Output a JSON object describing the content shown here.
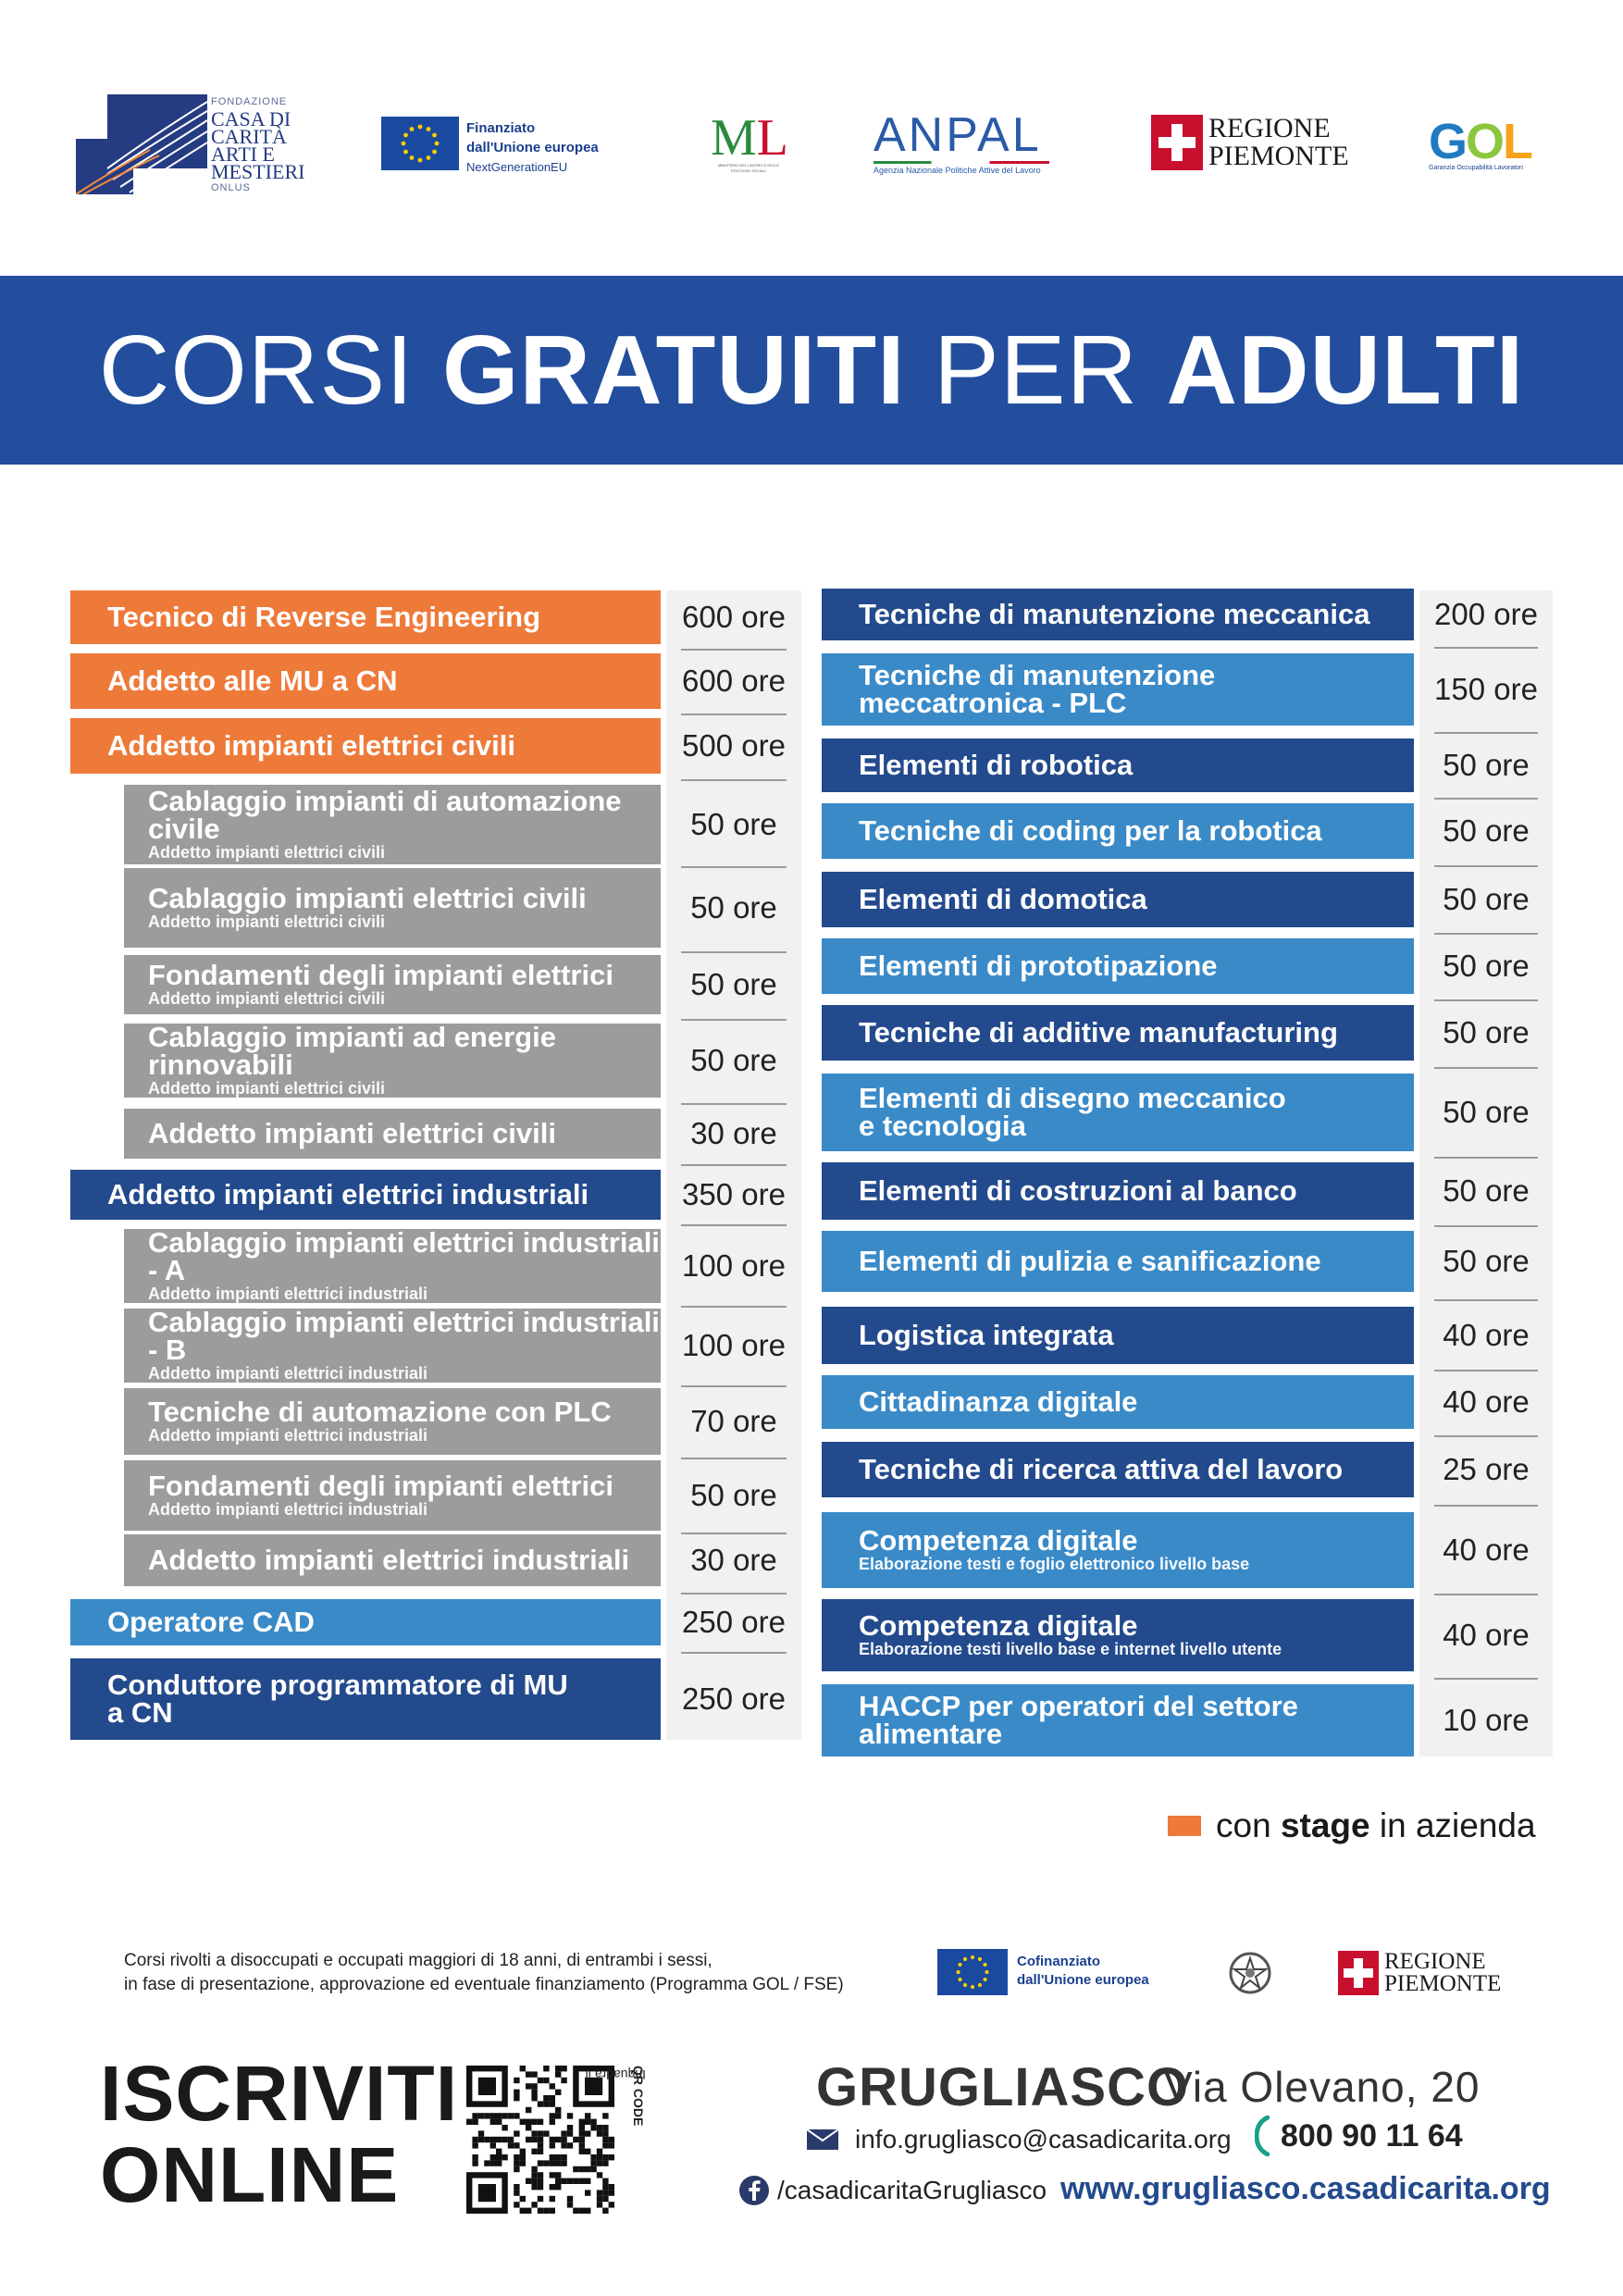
{
  "logos": {
    "cdc": {
      "line1": "FONDAZIONE",
      "line2": "CASA DI",
      "line3": "CARITÀ",
      "line4": "ARTI E",
      "line5": "MESTIERI",
      "line6": "ONLUS"
    },
    "eu": {
      "line1": "Finanziato",
      "line2": "dall'Unione europea",
      "line3": "NextGenerationEU"
    },
    "ml": {
      "letters_m": "M",
      "letters_l": "L",
      "sub": "MINISTERO DEL LAVORO E DELLE POLITICHE SOCIALI"
    },
    "anpal": {
      "word": "ANPAL",
      "sub": "Agenzia Nazionale Politiche Attive del Lavoro"
    },
    "regione": {
      "line1": "REGIONE",
      "line2": "PIEMONTE"
    },
    "gol": {
      "g": "G",
      "o": "O",
      "l": "L",
      "sub": "Garanzia Occupabilità Lavoratori"
    }
  },
  "banner": {
    "part1": "CORSI ",
    "part2": "GRATUITI",
    "part3": " PER ",
    "part4": "ADULTI"
  },
  "colors": {
    "orange": "#ee7a3a",
    "grey": "#9c9c9c",
    "navy": "#234a8c",
    "blue": "#3a8ac8",
    "banner": "#234e9e"
  },
  "left_courses": [
    {
      "title": "Tecnico di Reverse Engineering",
      "sub": "",
      "hours": "600 ore",
      "color": "orange",
      "indent": false
    },
    {
      "title": "Addetto alle MU a CN",
      "sub": "",
      "hours": "600 ore",
      "color": "orange",
      "indent": false
    },
    {
      "title": "Addetto impianti elettrici civili",
      "sub": "",
      "hours": "500 ore",
      "color": "orange",
      "indent": false
    },
    {
      "title": "Cablaggio impianti di automazione civile",
      "sub": "Addetto impianti elettrici civili",
      "hours": "50 ore",
      "color": "grey",
      "indent": true
    },
    {
      "title": "Cablaggio impianti elettrici civili",
      "sub": "Addetto impianti elettrici civili",
      "hours": "50 ore",
      "color": "grey",
      "indent": true
    },
    {
      "title": "Fondamenti degli impianti elettrici",
      "sub": "Addetto impianti elettrici civili",
      "hours": "50 ore",
      "color": "grey",
      "indent": true
    },
    {
      "title": "Cablaggio impianti ad energie rinnovabili",
      "sub": "Addetto impianti elettrici civili",
      "hours": "50 ore",
      "color": "grey",
      "indent": true
    },
    {
      "title": "Addetto impianti elettrici civili",
      "sub": "",
      "hours": "30 ore",
      "color": "grey",
      "indent": true
    },
    {
      "title": "Addetto impianti elettrici industriali",
      "sub": "",
      "hours": "350 ore",
      "color": "navy",
      "indent": false
    },
    {
      "title": "Cablaggio impianti elettrici industriali - A",
      "sub": "Addetto impianti elettrici industriali",
      "hours": "100 ore",
      "color": "grey",
      "indent": true
    },
    {
      "title": "Cablaggio impianti elettrici industriali - B",
      "sub": "Addetto impianti elettrici industriali",
      "hours": "100 ore",
      "color": "grey",
      "indent": true
    },
    {
      "title": "Tecniche di automazione con PLC",
      "sub": "Addetto impianti elettrici industriali",
      "hours": "70 ore",
      "color": "grey",
      "indent": true
    },
    {
      "title": "Fondamenti degli impianti elettrici",
      "sub": "Addetto impianti elettrici industriali",
      "hours": "50 ore",
      "color": "grey",
      "indent": true
    },
    {
      "title": "Addetto impianti elettrici industriali",
      "sub": "",
      "hours": "30 ore",
      "color": "grey",
      "indent": true
    },
    {
      "title": "Operatore CAD",
      "sub": "",
      "hours": "250 ore",
      "color": "blue",
      "indent": false
    },
    {
      "title": "Conduttore programmatore di MU\na CN",
      "sub": "",
      "hours": "250 ore",
      "color": "navy",
      "indent": false
    }
  ],
  "right_courses": [
    {
      "title": "Tecniche di manutenzione meccanica",
      "sub": "",
      "hours": "200 ore",
      "color": "navy"
    },
    {
      "title": "Tecniche di manutenzione\nmeccatronica - PLC",
      "sub": "",
      "hours": "150 ore",
      "color": "blue"
    },
    {
      "title": "Elementi di robotica",
      "sub": "",
      "hours": "50 ore",
      "color": "navy"
    },
    {
      "title": "Tecniche di coding per la robotica",
      "sub": "",
      "hours": "50 ore",
      "color": "blue"
    },
    {
      "title": "Elementi di domotica",
      "sub": "",
      "hours": "50 ore",
      "color": "navy"
    },
    {
      "title": "Elementi di prototipazione",
      "sub": "",
      "hours": "50 ore",
      "color": "blue"
    },
    {
      "title": "Tecniche di additive manufacturing",
      "sub": "",
      "hours": "50 ore",
      "color": "navy"
    },
    {
      "title": "Elementi di disegno meccanico\ne tecnologia",
      "sub": "",
      "hours": "50 ore",
      "color": "blue"
    },
    {
      "title": "Elementi di costruzioni al banco",
      "sub": "",
      "hours": "50 ore",
      "color": "navy"
    },
    {
      "title": "Elementi di pulizia e sanificazione",
      "sub": "",
      "hours": "50 ore",
      "color": "blue"
    },
    {
      "title": "Logistica integrata",
      "sub": "",
      "hours": "40 ore",
      "color": "navy"
    },
    {
      "title": "Cittadinanza digitale",
      "sub": "",
      "hours": "40 ore",
      "color": "blue"
    },
    {
      "title": "Tecniche di ricerca attiva del lavoro",
      "sub": "",
      "hours": "25 ore",
      "color": "navy"
    },
    {
      "title": "Competenza digitale",
      "sub": "Elaborazione testi e foglio elettronico livello base",
      "hours": "40 ore",
      "color": "blue"
    },
    {
      "title": "Competenza digitale",
      "sub": "Elaborazione testi livello base e internet livello utente",
      "hours": "40 ore",
      "color": "navy"
    },
    {
      "title": "HACCP per operatori del settore\nalimentare",
      "sub": "",
      "hours": "10 ore",
      "color": "blue"
    }
  ],
  "legend": {
    "pre": "con ",
    "bold": "stage",
    "post": " in azienda"
  },
  "footer": {
    "disclaimer_line1": "Corsi rivolti a disoccupati e occupati maggiori di 18 anni, di entrambi i sessi,",
    "disclaimer_line2": "in fase di presentazione, approvazione ed eventuale finanziamento (Programma GOL / FSE)",
    "cofin_line1": "Cofinanziato",
    "cofin_line2": "dall'Unione europea",
    "regione_line1": "REGIONE",
    "regione_line2": "PIEMONTE",
    "cta_line1": "ISCRIVITI",
    "cta_line2": "ONLINE",
    "qr_hint_pre": "Inquadra il ",
    "qr_hint_bold": "QR CODE",
    "city": "GRUGLIASCO",
    "address": "Via Olevano, 20",
    "email": "info.grugliasco@casadicarita.org",
    "phone": "800 90 11 64",
    "facebook": "/casadicaritaGrugliasco",
    "website": "www.grugliasco.casadicarita.org"
  }
}
